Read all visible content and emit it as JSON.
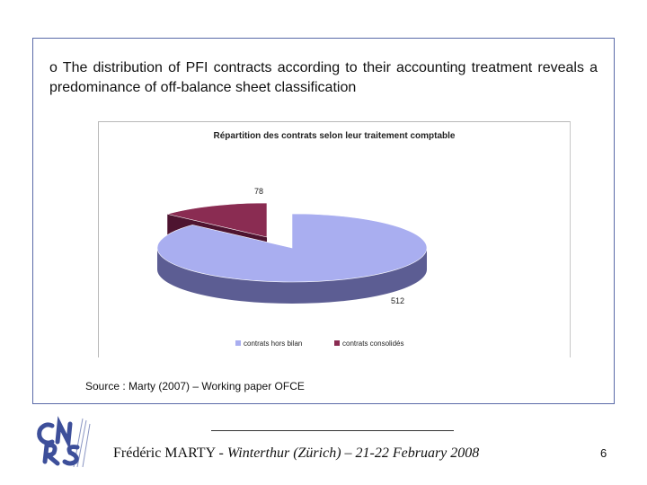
{
  "slide": {
    "bullet_marker": "o",
    "bullet_text": "The distribution of PFI contracts according to their accounting treatment reveals a predominance of off-balance sheet classification",
    "source": "Source : Marty (2007) – Working paper OFCE"
  },
  "footer": {
    "author": "Frédéric MARTY - ",
    "event": "Winterthur (Zürich) – 21-22 February 2008",
    "page_number": "6",
    "logo_text": "CNRS"
  },
  "colors": {
    "frame": "#5a6aa8",
    "slice_offbalance": "#a9aef0",
    "slice_offbalance_side": "#5c5d93",
    "slice_consolidated": "#8a2c52",
    "slice_consolidated_side": "#4e1430",
    "logo": "#3d4f9a"
  },
  "chart_data": {
    "type": "pie",
    "title": "Répartition des contrats selon leur traitement comptable",
    "categories": [
      "contrats hors bilan",
      "contrats consolidés"
    ],
    "values": [
      512,
      78
    ],
    "data_labels": [
      "512",
      "78"
    ],
    "legend_position": "bottom",
    "three_d": true
  }
}
